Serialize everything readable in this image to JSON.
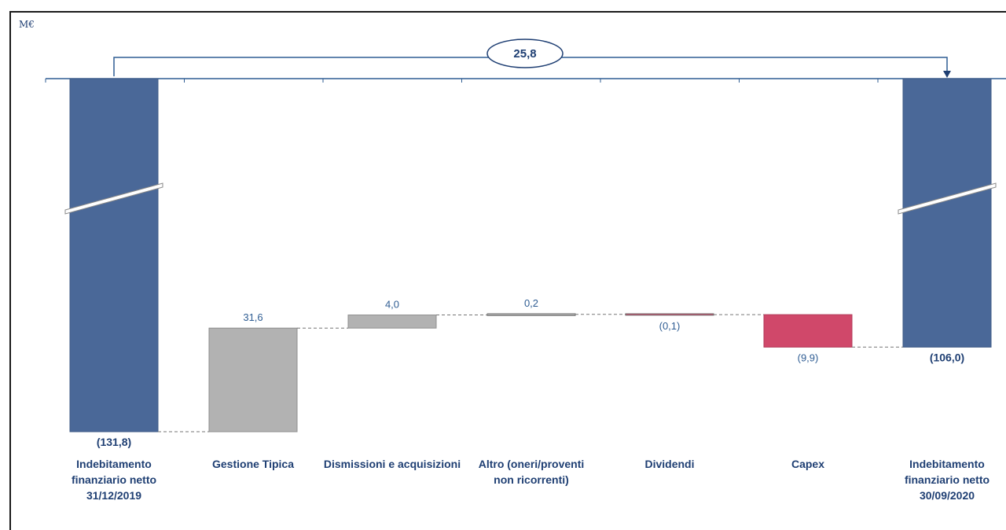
{
  "chart_data": {
    "type": "bar",
    "subtype": "waterfall",
    "unit_label": "M€",
    "categories": [
      [
        "Indebitamento",
        "finanziario netto",
        "31/12/2019"
      ],
      [
        "Gestione Tipica"
      ],
      [
        "Dismissioni e acquisizioni"
      ],
      [
        "Altro (oneri/proventi",
        "non ricorrenti)"
      ],
      [
        "Dividendi"
      ],
      [
        "Capex"
      ],
      [
        "Indebitamento",
        "finanziario netto",
        "30/09/2020"
      ]
    ],
    "values": [
      -131.8,
      31.6,
      4.0,
      0.2,
      -0.1,
      -9.9,
      -106.0
    ],
    "kinds": [
      "total",
      "delta",
      "delta",
      "delta",
      "delta",
      "delta",
      "total"
    ],
    "value_labels": [
      "(131,8)",
      "31,6",
      "4,0",
      "0,2",
      "(0,1)",
      "(9,9)",
      "(106,0)"
    ],
    "change_label": "25,8",
    "colors": {
      "total": "#4a6898",
      "increase": "#b2b2b2",
      "decrease": "#d0486a",
      "text": "#1f3f73",
      "axis": "#2f5d93"
    }
  }
}
